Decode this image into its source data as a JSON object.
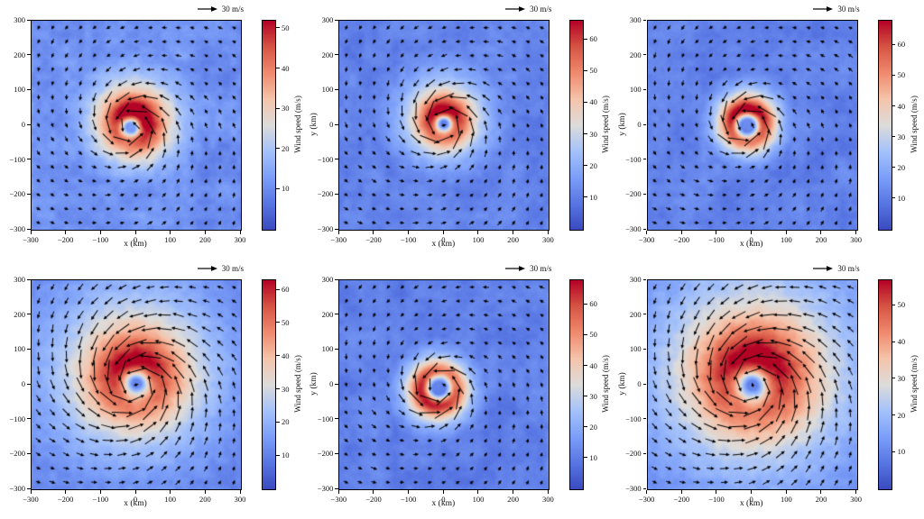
{
  "figure": {
    "background": "#ffffff",
    "arrow_color": "#000000",
    "rows": 2,
    "cols": 3
  },
  "colormap": {
    "name": "coolwarm",
    "stops": [
      [
        0.0,
        "#3b4cc0"
      ],
      [
        0.125,
        "#5876e3"
      ],
      [
        0.25,
        "#7c9ff9"
      ],
      [
        0.375,
        "#a5c2fa"
      ],
      [
        0.5,
        "#dddcdb"
      ],
      [
        0.625,
        "#f5c4ab"
      ],
      [
        0.75,
        "#f08b6e"
      ],
      [
        0.875,
        "#d75545"
      ],
      [
        1.0,
        "#b40426"
      ]
    ]
  },
  "chart_data": [
    {
      "id": "panel-top-left",
      "type": "heatmap-quiver",
      "ref_arrow_label": "30 m/s",
      "xlabel": "x (km)",
      "ylabel": "",
      "x_range": [
        -300,
        300
      ],
      "y_range": [
        -300,
        300
      ],
      "x_ticks": [
        -300,
        -200,
        -100,
        0,
        100,
        200,
        300
      ],
      "y_ticks": [
        300,
        200,
        100,
        0,
        -100,
        -200,
        -300
      ],
      "colorbar": {
        "label": "Wind speed (m/s)",
        "ticks": [
          10,
          20,
          30,
          40,
          50
        ],
        "vmin": 0,
        "vmax": 52
      },
      "quiver": {
        "spacing_km": 40,
        "ref_speed_ms": 30,
        "inflow_deg": 20,
        "rotation": "counterclockwise"
      },
      "vortex": {
        "center_km": [
          -15,
          -5
        ],
        "rmax_km": 48,
        "peak_ms": 50,
        "profile_exp": 1.5,
        "asym_amp": 0.18,
        "asym_dir_deg": 60,
        "seed": 1
      }
    },
    {
      "id": "panel-top-middle",
      "type": "heatmap-quiver",
      "ref_arrow_label": "30 m/s",
      "xlabel": "x (km)",
      "ylabel": "y (km)",
      "x_range": [
        -300,
        300
      ],
      "y_range": [
        -300,
        300
      ],
      "x_ticks": [
        -300,
        -200,
        -100,
        0,
        100,
        200,
        300
      ],
      "y_ticks": [
        300,
        200,
        100,
        0,
        -100,
        -200,
        -300
      ],
      "colorbar": {
        "label": "Wind speed (m/s)",
        "ticks": [
          10,
          20,
          30,
          40,
          50,
          60
        ],
        "vmin": 0,
        "vmax": 66
      },
      "quiver": {
        "spacing_km": 40,
        "ref_speed_ms": 30,
        "inflow_deg": 20,
        "rotation": "counterclockwise"
      },
      "vortex": {
        "center_km": [
          0,
          5
        ],
        "rmax_km": 42,
        "peak_ms": 60,
        "profile_exp": 1.5,
        "asym_amp": 0.15,
        "asym_dir_deg": 90,
        "seed": 2
      }
    },
    {
      "id": "panel-top-right",
      "type": "heatmap-quiver",
      "ref_arrow_label": "30 m/s",
      "xlabel": "x (km)",
      "ylabel": "y (km)",
      "x_range": [
        -300,
        300
      ],
      "y_range": [
        -300,
        300
      ],
      "x_ticks": [
        -300,
        -200,
        -100,
        0,
        100,
        200,
        300
      ],
      "y_ticks": [
        300,
        200,
        100,
        0,
        -100,
        -200,
        -300
      ],
      "colorbar": {
        "label": "Wind speed (m/s)",
        "ticks": [
          10,
          20,
          30,
          40,
          50,
          60
        ],
        "vmin": 0,
        "vmax": 68
      },
      "quiver": {
        "spacing_km": 40,
        "ref_speed_ms": 30,
        "inflow_deg": 20,
        "rotation": "counterclockwise"
      },
      "vortex": {
        "center_km": [
          -15,
          0
        ],
        "rmax_km": 50,
        "peak_ms": 62,
        "profile_exp": 2.2,
        "asym_amp": 0.15,
        "asym_dir_deg": 90,
        "seed": 3
      }
    },
    {
      "id": "panel-bottom-left",
      "type": "heatmap-quiver",
      "ref_arrow_label": "30 m/s",
      "xlabel": "x (km)",
      "ylabel": "",
      "x_range": [
        -300,
        300
      ],
      "y_range": [
        -300,
        300
      ],
      "x_ticks": [
        -300,
        -200,
        -100,
        0,
        100,
        200,
        300
      ],
      "y_ticks": [
        300,
        200,
        100,
        0,
        -100,
        -200,
        -300
      ],
      "colorbar": {
        "label": "Wind speed (m/s)",
        "ticks": [
          10,
          20,
          30,
          40,
          50,
          60
        ],
        "vmin": 0,
        "vmax": 63
      },
      "quiver": {
        "spacing_km": 40,
        "ref_speed_ms": 30,
        "inflow_deg": 20,
        "rotation": "counterclockwise"
      },
      "vortex": {
        "center_km": [
          0,
          5
        ],
        "rmax_km": 70,
        "peak_ms": 56,
        "profile_exp": 1.3,
        "asym_amp": 0.15,
        "asym_dir_deg": 100,
        "seed": 4
      }
    },
    {
      "id": "panel-bottom-middle",
      "type": "heatmap-quiver",
      "ref_arrow_label": "30 m/s",
      "xlabel": "x (km)",
      "ylabel": "y (km)",
      "x_range": [
        -300,
        300
      ],
      "y_range": [
        -300,
        300
      ],
      "x_ticks": [
        -300,
        -200,
        -100,
        0,
        100,
        200,
        300
      ],
      "y_ticks": [
        300,
        200,
        100,
        0,
        -100,
        -200,
        -300
      ],
      "colorbar": {
        "label": "Wind speed (m/s)",
        "ticks": [
          10,
          20,
          30,
          40,
          50,
          60
        ],
        "vmin": 0,
        "vmax": 68
      },
      "quiver": {
        "spacing_km": 40,
        "ref_speed_ms": 30,
        "inflow_deg": 20,
        "rotation": "counterclockwise"
      },
      "vortex": {
        "center_km": [
          -15,
          -10
        ],
        "rmax_km": 52,
        "peak_ms": 60,
        "profile_exp": 2.2,
        "asym_amp": 0.12,
        "asym_dir_deg": 230,
        "seed": 5
      }
    },
    {
      "id": "panel-bottom-right",
      "type": "heatmap-quiver",
      "ref_arrow_label": "30 m/s",
      "xlabel": "x (km)",
      "ylabel": "y (km)",
      "x_range": [
        -300,
        300
      ],
      "y_range": [
        -300,
        300
      ],
      "x_ticks": [
        -300,
        -200,
        -100,
        0,
        100,
        200,
        300
      ],
      "y_ticks": [
        300,
        200,
        100,
        0,
        -100,
        -200,
        -300
      ],
      "colorbar": {
        "label": "Wind speed (m/s)",
        "ticks": [
          10,
          20,
          30,
          40,
          50
        ],
        "vmin": 0,
        "vmax": 57
      },
      "quiver": {
        "spacing_km": 40,
        "ref_speed_ms": 30,
        "inflow_deg": 20,
        "rotation": "counterclockwise"
      },
      "vortex": {
        "center_km": [
          0,
          0
        ],
        "rmax_km": 85,
        "peak_ms": 52,
        "profile_exp": 1.3,
        "asym_amp": 0.15,
        "asym_dir_deg": 80,
        "seed": 6
      }
    }
  ]
}
